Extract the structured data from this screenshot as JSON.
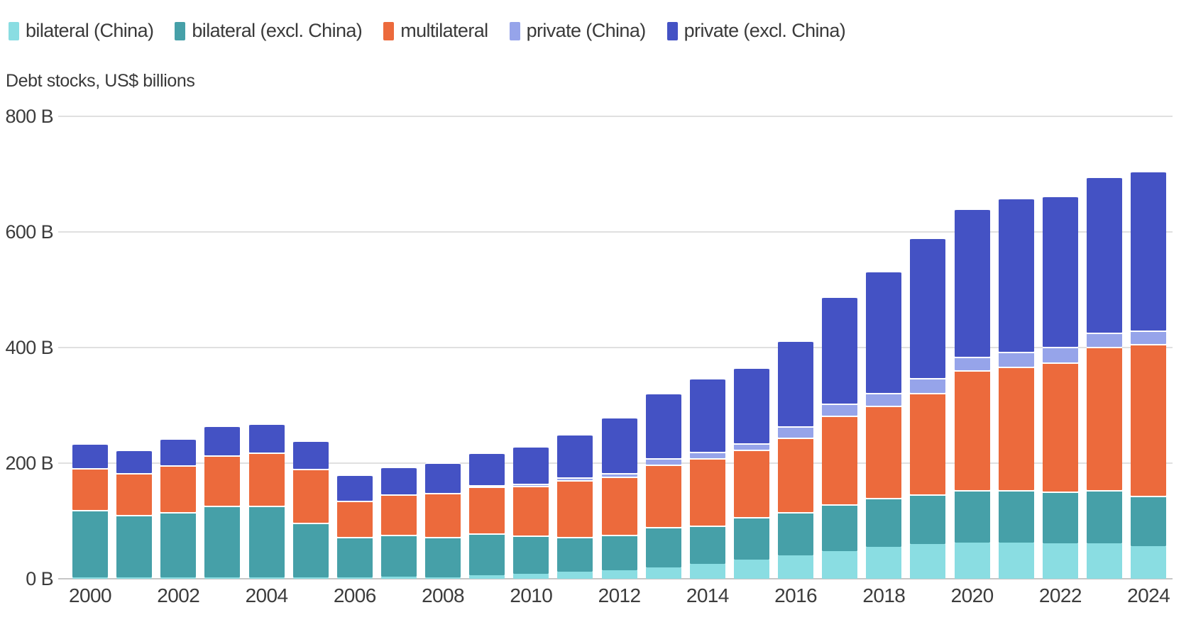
{
  "legend": {
    "items": [
      {
        "label": "bilateral (China)",
        "color": "#8ADDE2"
      },
      {
        "label": "bilateral (excl. China)",
        "color": "#46A0A8"
      },
      {
        "label": "multilateral",
        "color": "#EC6A3C"
      },
      {
        "label": "private (China)",
        "color": "#96A4EA"
      },
      {
        "label": "private (excl. China)",
        "color": "#4452C4"
      }
    ]
  },
  "title": "Debt stocks, US$ billions",
  "y_axis": {
    "unit": "US$ billions",
    "ticks": [
      {
        "value": 800,
        "label": "800 B"
      },
      {
        "value": 600,
        "label": "600 B"
      },
      {
        "value": 400,
        "label": "400 B"
      },
      {
        "value": 200,
        "label": "200 B"
      },
      {
        "value": 0,
        "label": "0 B"
      }
    ]
  },
  "x_axis": {
    "tick_labels": [
      "2000",
      "2002",
      "2004",
      "2006",
      "2008",
      "2010",
      "2012",
      "2014",
      "2016",
      "2018",
      "2020",
      "2022",
      "2024"
    ]
  },
  "colors": {
    "grid": "#e0e0e0",
    "axis_baseline": "#c6c6c6",
    "text": "#3b3b3b"
  },
  "chart_data": {
    "type": "bar",
    "stacked": true,
    "title": "Debt stocks, US$ billions",
    "ylabel": "Debt stocks, US$ billions",
    "xlabel": "",
    "ylim": [
      0,
      800
    ],
    "grid": true,
    "legend_position": "top-left",
    "categories": [
      2000,
      2001,
      2002,
      2003,
      2004,
      2005,
      2006,
      2007,
      2008,
      2009,
      2010,
      2011,
      2012,
      2013,
      2014,
      2015,
      2016,
      2017,
      2018,
      2019,
      2020,
      2021,
      2022,
      2023,
      2024
    ],
    "series": [
      {
        "name": "bilateral (China)",
        "color": "#8ADDE2",
        "values": [
          2,
          2,
          2,
          3,
          3,
          3,
          3,
          4,
          3,
          6,
          9,
          12,
          15,
          20,
          26,
          33,
          40,
          48,
          55,
          60,
          62,
          63,
          61,
          61,
          57
        ]
      },
      {
        "name": "bilateral (excl. China)",
        "color": "#46A0A8",
        "values": [
          117,
          108,
          113,
          123,
          123,
          94,
          69,
          72,
          70,
          72,
          66,
          61,
          61,
          69,
          66,
          74,
          75,
          81,
          85,
          86,
          92,
          91,
          90,
          93,
          87
        ]
      },
      {
        "name": "multilateral",
        "color": "#EC6A3C",
        "values": [
          72,
          73,
          81,
          87,
          93,
          93,
          63,
          70,
          76,
          82,
          86,
          97,
          101,
          109,
          117,
          116,
          129,
          153,
          159,
          176,
          207,
          213,
          223,
          247,
          262
        ]
      },
      {
        "name": "private (China)",
        "color": "#96A4EA",
        "values": [
          0,
          0,
          0,
          0,
          0,
          0,
          0,
          0,
          0,
          1,
          4,
          5,
          6,
          11,
          11,
          11,
          20,
          21,
          22,
          25,
          23,
          26,
          27,
          25,
          23
        ]
      },
      {
        "name": "private (excl. China)",
        "color": "#4452C4",
        "values": [
          43,
          40,
          47,
          52,
          50,
          49,
          45,
          48,
          52,
          56,
          64,
          75,
          97,
          112,
          127,
          132,
          148,
          185,
          211,
          243,
          257,
          266,
          262,
          270,
          277
        ]
      }
    ],
    "totals": [
      234,
      223,
      243,
      265,
      269,
      239,
      180,
      194,
      201,
      217,
      229,
      250,
      280,
      321,
      347,
      366,
      412,
      488,
      532,
      590,
      641,
      659,
      663,
      696,
      706
    ]
  }
}
